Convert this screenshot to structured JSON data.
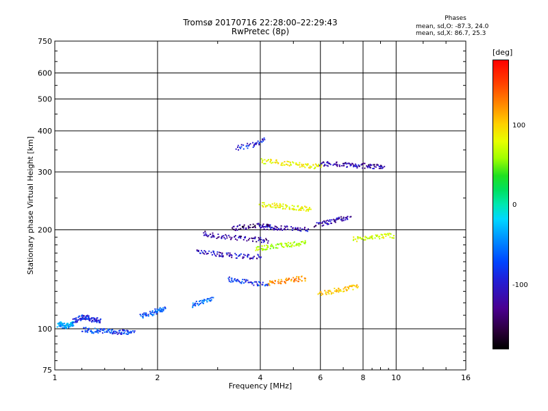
{
  "chart_data": {
    "type": "scatter",
    "title": "Tromsø 20170716 22:28:00–22:29:43",
    "subtitle": "RwPretec (8p)",
    "xlabel": "Frequency [MHz]",
    "ylabel": "Stationary phase Virtual Height [km]",
    "x_scale": "log",
    "y_scale": "log",
    "xlim": [
      1,
      16
    ],
    "ylim": [
      75,
      750
    ],
    "x_ticks": [
      "1",
      "2",
      "4",
      "6",
      "8",
      "10",
      "16"
    ],
    "y_ticks": [
      "75",
      "100",
      "200",
      "300",
      "400",
      "500",
      "600",
      "750"
    ],
    "grid": true,
    "legend": {
      "title": "Phases",
      "lines": [
        "mean, sd,O: -87.3, 24.0",
        "mean, sd,X: 86.7, 25.3"
      ]
    },
    "colorbar": {
      "unit": "[deg]",
      "ticks": [
        "100",
        "0",
        "-100"
      ],
      "range": [
        -180,
        180
      ]
    },
    "traces": [
      {
        "x": [
          1.02,
          1.04,
          1.07,
          1.1,
          1.12
        ],
        "y": [
          103,
          104,
          102,
          103,
          104
        ],
        "phase": -70
      },
      {
        "x": [
          1.13,
          1.18,
          1.22,
          1.25,
          1.3,
          1.35
        ],
        "y": [
          106,
          108,
          109,
          108,
          107,
          106
        ],
        "phase": -115
      },
      {
        "x": [
          1.2,
          1.3,
          1.4,
          1.5,
          1.6,
          1.7
        ],
        "y": [
          100,
          99,
          99,
          98,
          98,
          98
        ],
        "phase": -105
      },
      {
        "x": [
          1.78,
          1.9,
          2.0,
          2.1
        ],
        "y": [
          110,
          112,
          114,
          116
        ],
        "phase": -95
      },
      {
        "x": [
          2.5,
          2.7,
          2.9
        ],
        "y": [
          118,
          122,
          125
        ],
        "phase": -85
      },
      {
        "x": [
          2.6,
          2.9,
          3.2,
          3.6,
          4.0
        ],
        "y": [
          172,
          170,
          168,
          167,
          166
        ],
        "phase": -130
      },
      {
        "x": [
          2.7,
          3.0,
          3.4,
          3.8,
          4.2
        ],
        "y": [
          196,
          192,
          190,
          188,
          186
        ],
        "phase": -140
      },
      {
        "x": [
          3.3,
          3.6,
          4.0,
          4.4
        ],
        "y": [
          203,
          205,
          207,
          206
        ],
        "phase": -150
      },
      {
        "x": [
          3.2,
          3.5,
          3.9,
          4.2
        ],
        "y": [
          142,
          140,
          138,
          137
        ],
        "phase": -110
      },
      {
        "x": [
          4.2,
          4.6,
          5.0,
          5.4
        ],
        "y": [
          138,
          140,
          142,
          143
        ],
        "phase": 135
      },
      {
        "x": [
          3.9,
          4.2,
          4.6,
          5.0,
          5.4
        ],
        "y": [
          176,
          178,
          180,
          182,
          184
        ],
        "phase": 55
      },
      {
        "x": [
          4.0,
          4.5,
          5.0,
          5.5
        ],
        "y": [
          205,
          204,
          203,
          202
        ],
        "phase": -135
      },
      {
        "x": [
          4.0,
          4.4,
          4.8,
          5.2,
          5.6
        ],
        "y": [
          240,
          238,
          236,
          234,
          232
        ],
        "phase": 85
      },
      {
        "x": [
          4.0,
          4.5,
          5.0,
          5.5,
          6.0
        ],
        "y": [
          325,
          322,
          318,
          315,
          312
        ],
        "phase": 90
      },
      {
        "x": [
          5.8,
          6.3,
          6.8,
          7.3
        ],
        "y": [
          208,
          212,
          216,
          220
        ],
        "phase": -140
      },
      {
        "x": [
          6.0,
          6.6,
          7.2,
          7.8,
          8.5,
          9.2
        ],
        "y": [
          320,
          318,
          316,
          315,
          314,
          313
        ],
        "phase": -140
      },
      {
        "x": [
          5.9,
          6.5,
          7.1,
          7.7
        ],
        "y": [
          128,
          131,
          133,
          135
        ],
        "phase": 110
      },
      {
        "x": [
          7.5,
          8.2,
          9.0,
          9.8
        ],
        "y": [
          188,
          190,
          192,
          193
        ],
        "phase": 75
      },
      {
        "x": [
          3.4,
          3.8,
          4.1
        ],
        "y": [
          355,
          365,
          378
        ],
        "phase": -120
      }
    ]
  }
}
